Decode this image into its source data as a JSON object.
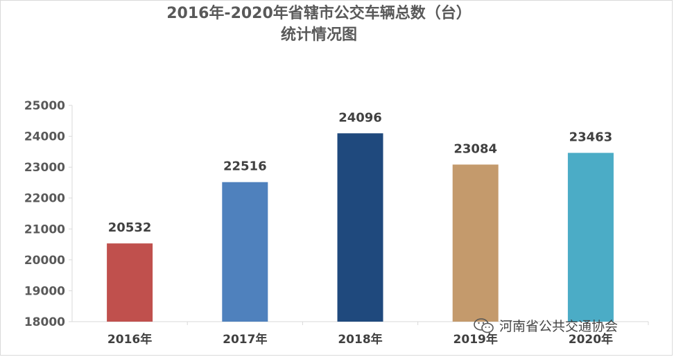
{
  "chart_data": {
    "type": "bar",
    "title_line1": "2016年-2020年省辖市公交车辆总数（台）",
    "title_line2": "统计情况图",
    "categories": [
      "2016年",
      "2017年",
      "2018年",
      "2019年",
      "2020年"
    ],
    "values": [
      20532,
      22516,
      24096,
      23084,
      23463
    ],
    "colors": [
      "#c0504d",
      "#4f81bd",
      "#1f497d",
      "#c49a6c",
      "#4bacc6"
    ],
    "ylim": [
      18000,
      25000
    ],
    "yticks": [
      18000,
      19000,
      20000,
      21000,
      22000,
      23000,
      24000,
      25000
    ],
    "xlabel": "",
    "ylabel": "",
    "grid": false,
    "data_labels": true
  },
  "watermark": {
    "text": "河南省公共交通协会",
    "icon": "wechat-icon"
  }
}
